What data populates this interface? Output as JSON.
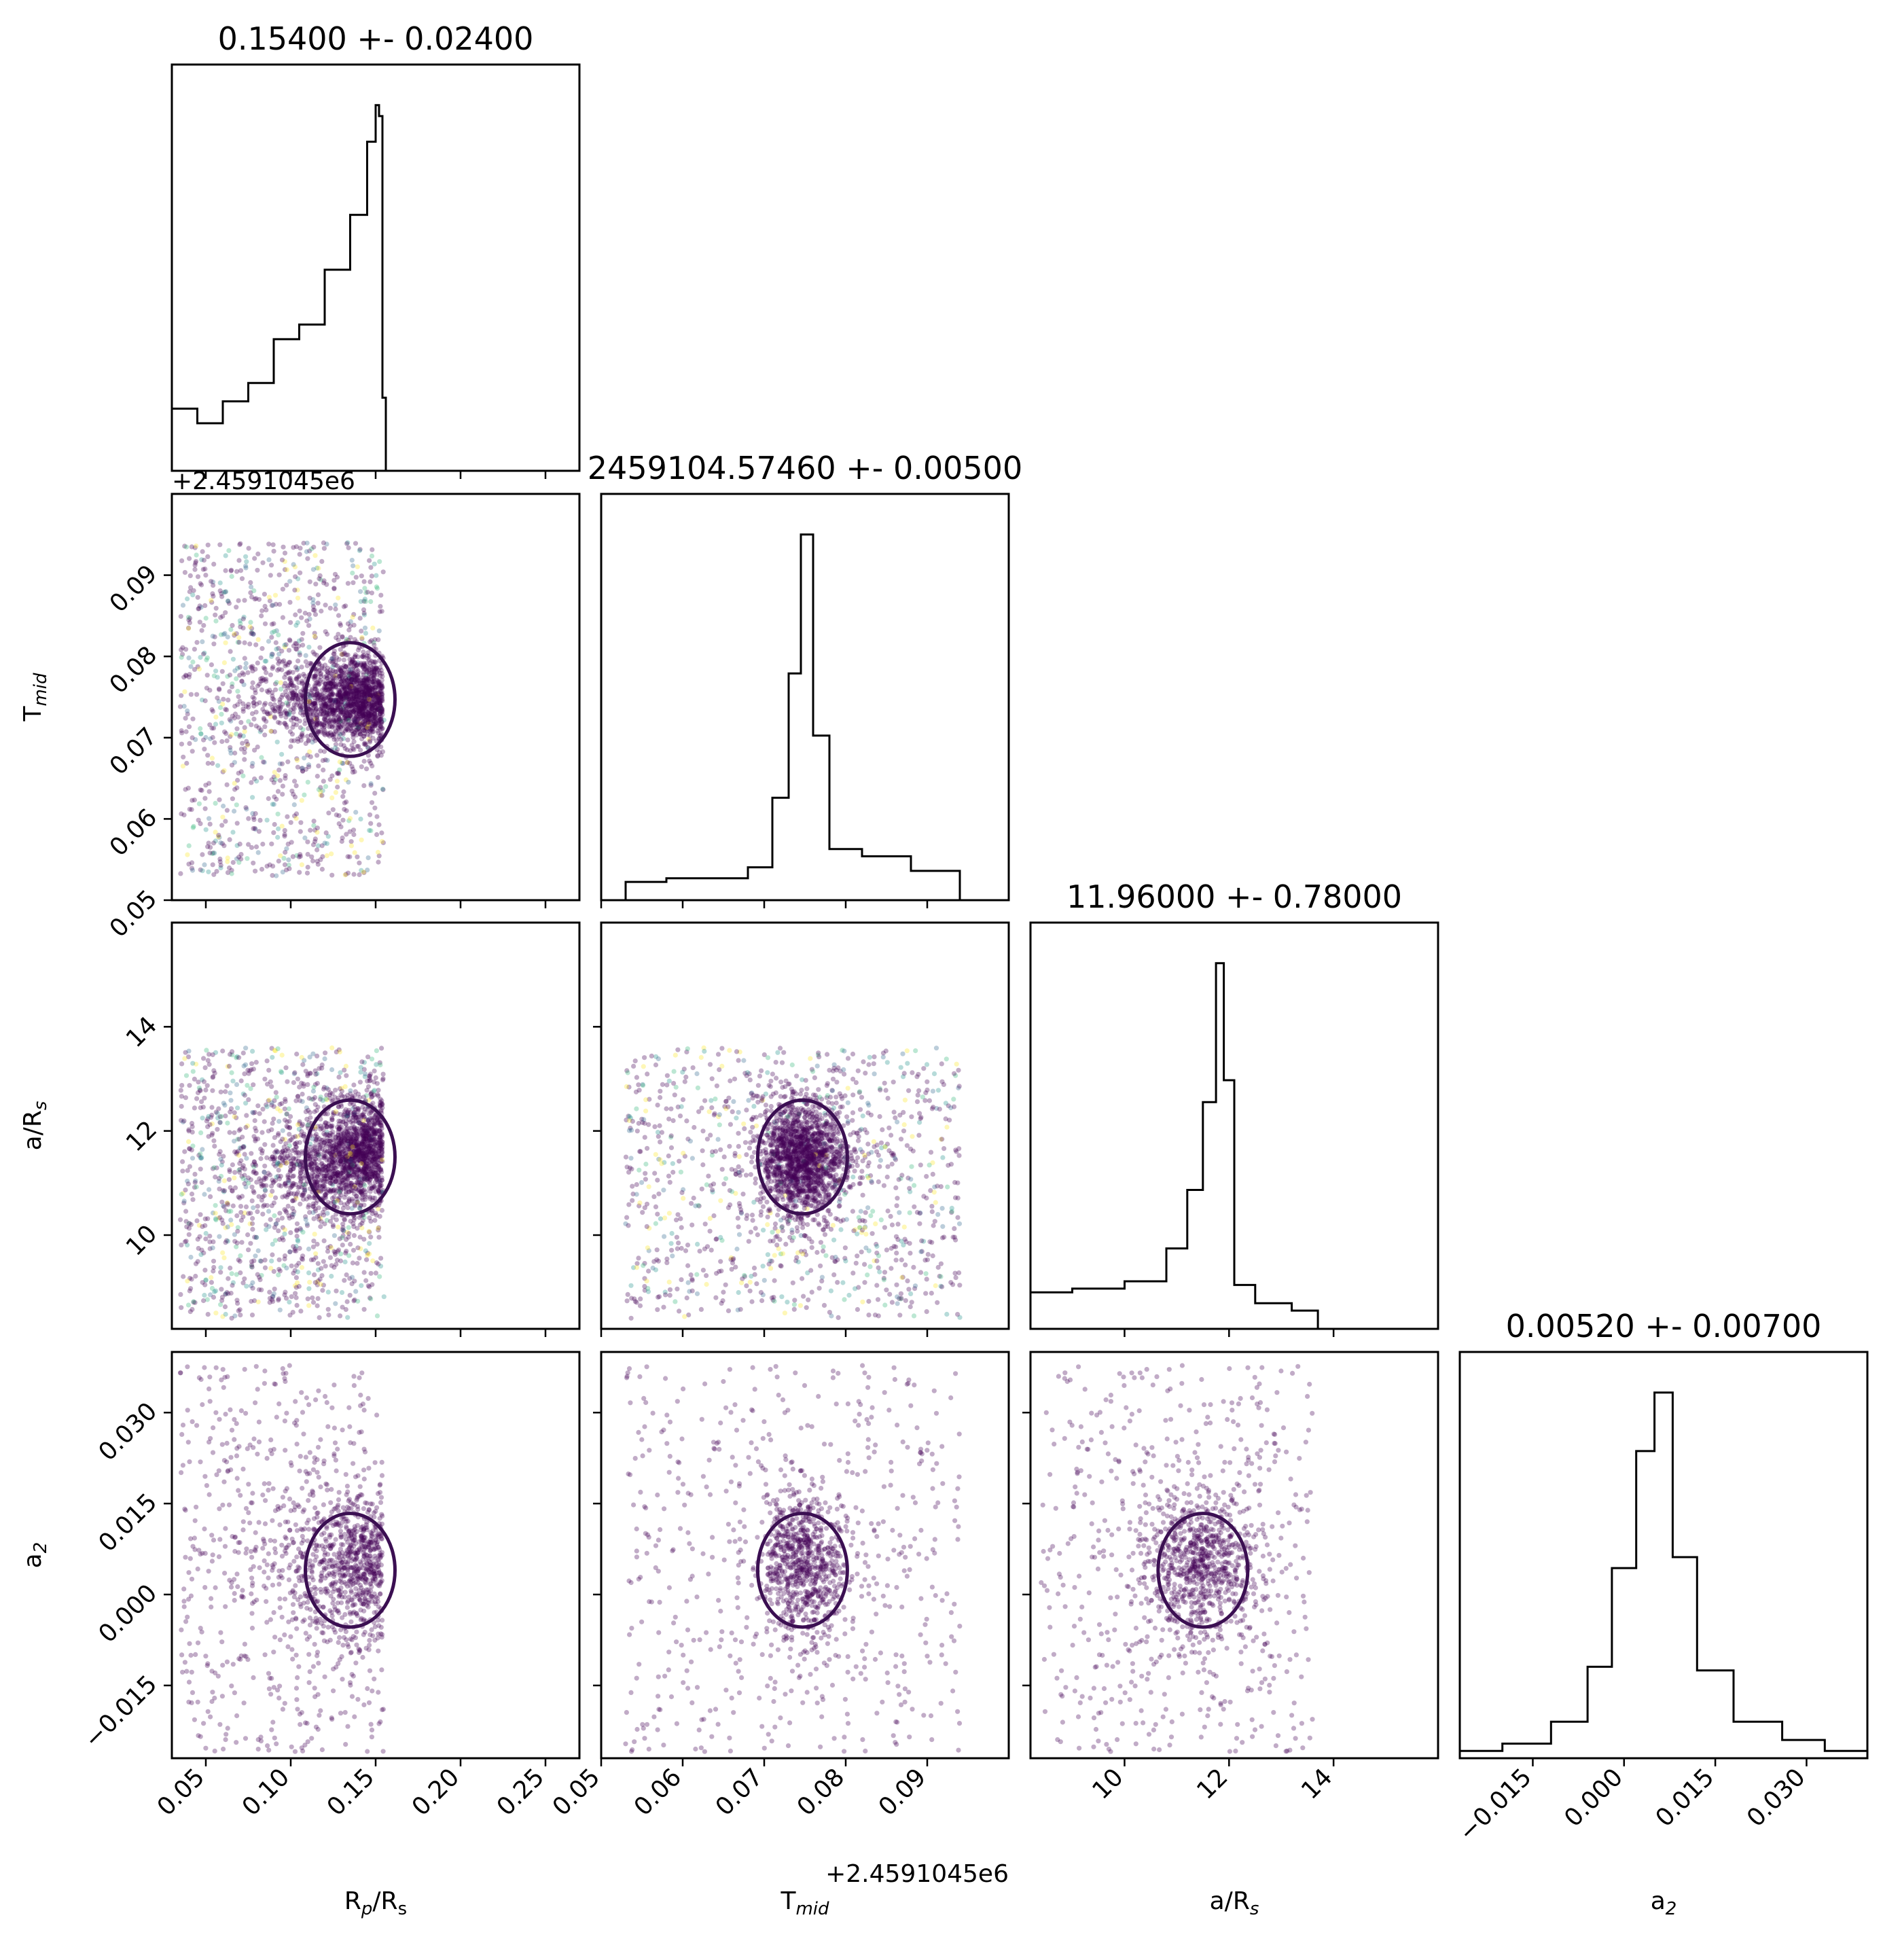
{
  "chart_data": {
    "type": "scatter",
    "parameters": [
      {
        "id": "rp",
        "label_main": "R",
        "label_sub": "p",
        "label_tail": "/R",
        "label_sub2": "s",
        "range": [
          0.03,
          0.27
        ],
        "ticks": [
          0.05,
          0.1,
          0.15,
          0.2,
          0.25
        ],
        "tick_labels": [
          "0.05",
          "0.10",
          "0.15",
          "0.20",
          "0.25"
        ],
        "title": "0.15400 +- 0.02400"
      },
      {
        "id": "tmid",
        "label_main": "T",
        "label_sub": "mid",
        "label_tail": "",
        "label_sub2": "",
        "range": [
          0.05,
          0.1
        ],
        "ticks": [
          0.05,
          0.06,
          0.07,
          0.08,
          0.09
        ],
        "tick_labels": [
          "0.05",
          "0.06",
          "0.07",
          "0.08",
          "0.09"
        ],
        "offset": "+2.4591045e6",
        "title": "2459104.57460 +- 0.00500"
      },
      {
        "id": "ars",
        "label_main": "a/R",
        "label_sub": "s",
        "label_tail": "",
        "label_sub2": "",
        "range": [
          8.2,
          16.0
        ],
        "ticks": [
          10,
          12,
          14
        ],
        "tick_labels": [
          "10",
          "12",
          "14"
        ],
        "title": "11.96000 +- 0.78000"
      },
      {
        "id": "a2",
        "label_main": "a",
        "label_sub": "2",
        "label_tail": "",
        "label_sub2": "",
        "range": [
          -0.027,
          0.04
        ],
        "ticks": [
          -0.015,
          0.0,
          0.015,
          0.03
        ],
        "tick_labels": [
          "−0.015",
          "0.000",
          "0.015",
          "0.030"
        ],
        "title": "0.00520 +- 0.00700"
      }
    ],
    "histograms": {
      "rp": {
        "x": [
          0.03,
          0.045,
          0.06,
          0.075,
          0.09,
          0.105,
          0.12,
          0.135,
          0.145,
          0.15,
          0.152,
          0.154,
          0.156
        ],
        "y": [
          0.17,
          0.13,
          0.19,
          0.24,
          0.36,
          0.4,
          0.55,
          0.7,
          0.9,
          1.0,
          0.97,
          0.2,
          0.0
        ]
      },
      "tmid": {
        "x": [
          0.05,
          0.053,
          0.058,
          0.064,
          0.068,
          0.071,
          0.073,
          0.0745,
          0.076,
          0.078,
          0.082,
          0.088,
          0.094
        ],
        "y": [
          0.0,
          0.05,
          0.06,
          0.06,
          0.09,
          0.28,
          0.62,
          1.0,
          0.45,
          0.14,
          0.12,
          0.08,
          0.0
        ]
      },
      "ars": {
        "x": [
          8.2,
          9.0,
          10.0,
          10.8,
          11.2,
          11.5,
          11.75,
          11.9,
          12.1,
          12.5,
          13.2,
          13.7,
          14.5
        ],
        "y": [
          0.1,
          0.11,
          0.13,
          0.22,
          0.38,
          0.62,
          1.0,
          0.68,
          0.12,
          0.07,
          0.05,
          0.0,
          0.0
        ]
      },
      "a2": {
        "x": [
          -0.027,
          -0.02,
          -0.012,
          -0.006,
          -0.002,
          0.002,
          0.005,
          0.008,
          0.012,
          0.018,
          0.026,
          0.033,
          0.04
        ],
        "y": [
          0.02,
          0.04,
          0.1,
          0.25,
          0.52,
          0.84,
          1.0,
          0.55,
          0.24,
          0.1,
          0.05,
          0.02,
          0.01
        ]
      }
    }
  },
  "colors": {
    "contour": "#3b0f52",
    "point": "#440154",
    "alt_points": [
      "#fde725",
      "#35b779",
      "#31688e",
      "#21918c"
    ]
  }
}
